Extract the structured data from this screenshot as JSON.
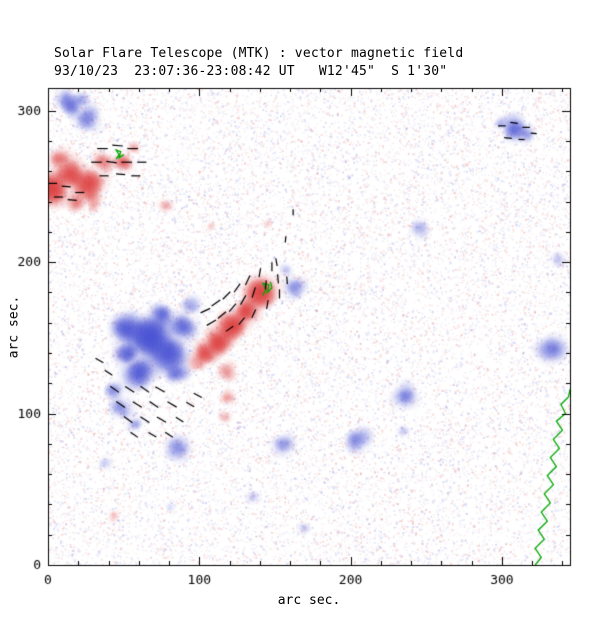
{
  "header": {
    "title": "Solar Flare Telescope (MTK) : vector magnetic field",
    "subtitle": "93/10/23  23:07:36-23:08:42 UT   W12'45\"  S 1'30\""
  },
  "chart_data": {
    "type": "heatmap",
    "title": "Solar Flare Telescope (MTK) : vector magnetic field",
    "subtitle": "93/10/23  23:07:36-23:08:42 UT   W12'45\"  S 1'30\"",
    "xlabel": "arc sec.",
    "ylabel": "arc sec.",
    "xlim": [
      0,
      345
    ],
    "ylim": [
      0,
      315
    ],
    "xticks": [
      0,
      100,
      200,
      300
    ],
    "yticks": [
      0,
      100,
      200,
      300
    ],
    "minor_tick_step": 20,
    "colors": {
      "positive": "#dc3c3c",
      "negative": "#4650d2",
      "contour": "#00a800",
      "vector": "#000000",
      "frame": "#000000",
      "background": "#ffffff"
    },
    "regions_format": [
      "x_arcsec",
      "y_arcsec",
      "radius_arcsec",
      "intensity",
      "polarity_p_pos_red_n_neg_blue"
    ],
    "regions": [
      [
        3,
        249,
        13,
        0.85,
        "p"
      ],
      [
        14,
        259,
        11,
        0.8,
        "p"
      ],
      [
        26,
        251,
        12,
        0.8,
        "p"
      ],
      [
        37,
        266,
        8,
        0.65,
        "p"
      ],
      [
        50,
        266,
        7,
        0.7,
        "p"
      ],
      [
        57,
        275,
        5,
        0.5,
        "p"
      ],
      [
        18,
        239,
        8,
        0.5,
        "p"
      ],
      [
        30,
        242,
        7,
        0.45,
        "p"
      ],
      [
        31,
        236,
        5,
        0.35,
        "p"
      ],
      [
        8,
        268,
        8,
        0.6,
        "p"
      ],
      [
        15,
        304,
        9,
        0.7,
        "n"
      ],
      [
        27,
        295,
        9,
        0.6,
        "n"
      ],
      [
        22,
        308,
        6,
        0.5,
        "n"
      ],
      [
        308,
        288,
        9,
        0.75,
        "n"
      ],
      [
        317,
        283,
        6,
        0.45,
        "n"
      ],
      [
        300,
        292,
        5,
        0.4,
        "n"
      ],
      [
        68,
        150,
        15,
        0.95,
        "n"
      ],
      [
        80,
        138,
        13,
        0.9,
        "n"
      ],
      [
        53,
        156,
        12,
        0.8,
        "n"
      ],
      [
        60,
        127,
        11,
        0.8,
        "n"
      ],
      [
        90,
        157,
        10,
        0.7,
        "n"
      ],
      [
        75,
        166,
        9,
        0.65,
        "n"
      ],
      [
        95,
        171,
        7,
        0.5,
        "n"
      ],
      [
        48,
        103,
        8,
        0.6,
        "n"
      ],
      [
        58,
        94,
        6,
        0.45,
        "n"
      ],
      [
        44,
        115,
        7,
        0.55,
        "n"
      ],
      [
        52,
        140,
        9,
        0.7,
        "n"
      ],
      [
        85,
        125,
        8,
        0.6,
        "n"
      ],
      [
        104,
        140,
        9,
        0.8,
        "p"
      ],
      [
        113,
        148,
        11,
        0.85,
        "p"
      ],
      [
        122,
        157,
        11,
        0.9,
        "p"
      ],
      [
        131,
        168,
        9,
        0.8,
        "p"
      ],
      [
        141,
        180,
        12,
        0.95,
        "p"
      ],
      [
        118,
        128,
        7,
        0.6,
        "p"
      ],
      [
        120,
        112,
        6,
        0.5,
        "p"
      ],
      [
        117,
        98,
        5,
        0.4,
        "p"
      ],
      [
        98,
        133,
        6,
        0.5,
        "p"
      ],
      [
        164,
        183,
        8,
        0.6,
        "n"
      ],
      [
        157,
        195,
        5,
        0.4,
        "n"
      ],
      [
        85,
        77,
        9,
        0.55,
        "n"
      ],
      [
        155,
        79,
        8,
        0.5,
        "n"
      ],
      [
        205,
        82,
        9,
        0.55,
        "n"
      ],
      [
        236,
        112,
        9,
        0.6,
        "n"
      ],
      [
        234,
        89,
        5,
        0.3,
        "n"
      ],
      [
        332,
        144,
        10,
        0.6,
        "n"
      ],
      [
        337,
        201,
        6,
        0.35,
        "n"
      ],
      [
        246,
        222,
        7,
        0.4,
        "n"
      ],
      [
        135,
        45,
        5,
        0.35,
        "n"
      ],
      [
        38,
        67,
        5,
        0.3,
        "n"
      ],
      [
        81,
        38,
        4,
        0.25,
        "n"
      ],
      [
        169,
        24,
        5,
        0.3,
        "n"
      ],
      [
        43,
        32,
        5,
        0.35,
        "p"
      ],
      [
        145,
        225,
        4,
        0.35,
        "p"
      ],
      [
        78,
        238,
        6,
        0.4,
        "p"
      ],
      [
        108,
        223,
        4,
        0.3,
        "p"
      ]
    ],
    "vectors_format": [
      "x_arcsec",
      "y_arcsec",
      "angle_deg",
      "length_arcsec"
    ],
    "vectors": [
      [
        36,
        275,
        0,
        7
      ],
      [
        46,
        277,
        -5,
        7
      ],
      [
        56,
        275,
        0,
        7
      ],
      [
        32,
        266,
        0,
        7
      ],
      [
        42,
        266,
        -8,
        7
      ],
      [
        52,
        266,
        0,
        7
      ],
      [
        62,
        266,
        0,
        6
      ],
      [
        37,
        257,
        0,
        6
      ],
      [
        48,
        258,
        -5,
        6
      ],
      [
        58,
        257,
        0,
        6
      ],
      [
        3,
        252,
        0,
        6
      ],
      [
        12,
        250,
        -5,
        6
      ],
      [
        21,
        246,
        0,
        6
      ],
      [
        7,
        243,
        0,
        6
      ],
      [
        16,
        241,
        -5,
        6
      ],
      [
        104,
        168,
        25,
        7
      ],
      [
        111,
        173,
        35,
        7
      ],
      [
        118,
        178,
        45,
        7
      ],
      [
        125,
        183,
        55,
        7
      ],
      [
        132,
        188,
        65,
        7
      ],
      [
        140,
        193,
        80,
        6
      ],
      [
        148,
        197,
        90,
        6
      ],
      [
        108,
        160,
        30,
        7
      ],
      [
        115,
        165,
        40,
        7
      ],
      [
        122,
        170,
        50,
        7
      ],
      [
        129,
        175,
        60,
        7
      ],
      [
        136,
        180,
        72,
        7
      ],
      [
        144,
        185,
        85,
        6
      ],
      [
        152,
        189,
        95,
        6
      ],
      [
        120,
        156,
        35,
        6
      ],
      [
        128,
        161,
        50,
        6
      ],
      [
        136,
        166,
        65,
        6
      ],
      [
        145,
        172,
        80,
        6
      ],
      [
        153,
        179,
        90,
        6
      ],
      [
        158,
        188,
        95,
        5
      ],
      [
        151,
        200,
        100,
        5
      ],
      [
        157,
        215,
        85,
        4
      ],
      [
        162,
        233,
        90,
        4
      ],
      [
        44,
        116,
        -35,
        7
      ],
      [
        54,
        116,
        -32,
        7
      ],
      [
        64,
        116,
        -35,
        7
      ],
      [
        74,
        116,
        -30,
        7
      ],
      [
        48,
        106,
        -35,
        7
      ],
      [
        59,
        106,
        -32,
        7
      ],
      [
        70,
        106,
        -35,
        7
      ],
      [
        82,
        106,
        -30,
        7
      ],
      [
        94,
        106,
        -30,
        6
      ],
      [
        53,
        96,
        -35,
        7
      ],
      [
        64,
        96,
        -32,
        7
      ],
      [
        75,
        96,
        -30,
        7
      ],
      [
        87,
        96,
        -33,
        6
      ],
      [
        57,
        86,
        -35,
        6
      ],
      [
        69,
        86,
        -30,
        6
      ],
      [
        80,
        86,
        -33,
        6
      ],
      [
        34,
        135,
        -30,
        6
      ],
      [
        40,
        127,
        -33,
        6
      ],
      [
        99,
        112,
        -28,
        6
      ],
      [
        300,
        290,
        0,
        5
      ],
      [
        308,
        292,
        -8,
        5
      ],
      [
        316,
        289,
        0,
        5
      ],
      [
        304,
        282,
        -5,
        5
      ],
      [
        313,
        281,
        0,
        4
      ],
      [
        321,
        285,
        -5,
        4
      ]
    ],
    "contours": {
      "main": [
        [
          322,
          0
        ],
        [
          326,
          5
        ],
        [
          322,
          11
        ],
        [
          328,
          17
        ],
        [
          324,
          23
        ],
        [
          330,
          29
        ],
        [
          326,
          35
        ],
        [
          332,
          41
        ],
        [
          328,
          47
        ],
        [
          334,
          53
        ],
        [
          330,
          59
        ],
        [
          336,
          65
        ],
        [
          332,
          71
        ],
        [
          338,
          77
        ],
        [
          334,
          83
        ],
        [
          340,
          89
        ],
        [
          336,
          95
        ],
        [
          342,
          100
        ],
        [
          339,
          106
        ],
        [
          344,
          111
        ],
        [
          345,
          116
        ]
      ],
      "small": [
        [
          [
            45,
            268
          ],
          [
            47,
            271
          ],
          [
            45,
            274
          ],
          [
            48,
            273
          ],
          [
            47,
            269
          ],
          [
            50,
            271
          ]
        ],
        [
          [
            142,
            178
          ],
          [
            144,
            182
          ],
          [
            142,
            186
          ],
          [
            146,
            185
          ],
          [
            145,
            180
          ],
          [
            148,
            183
          ],
          [
            147,
            187
          ]
        ]
      ]
    },
    "noise": {
      "count": 22000,
      "seed": 12345
    }
  }
}
